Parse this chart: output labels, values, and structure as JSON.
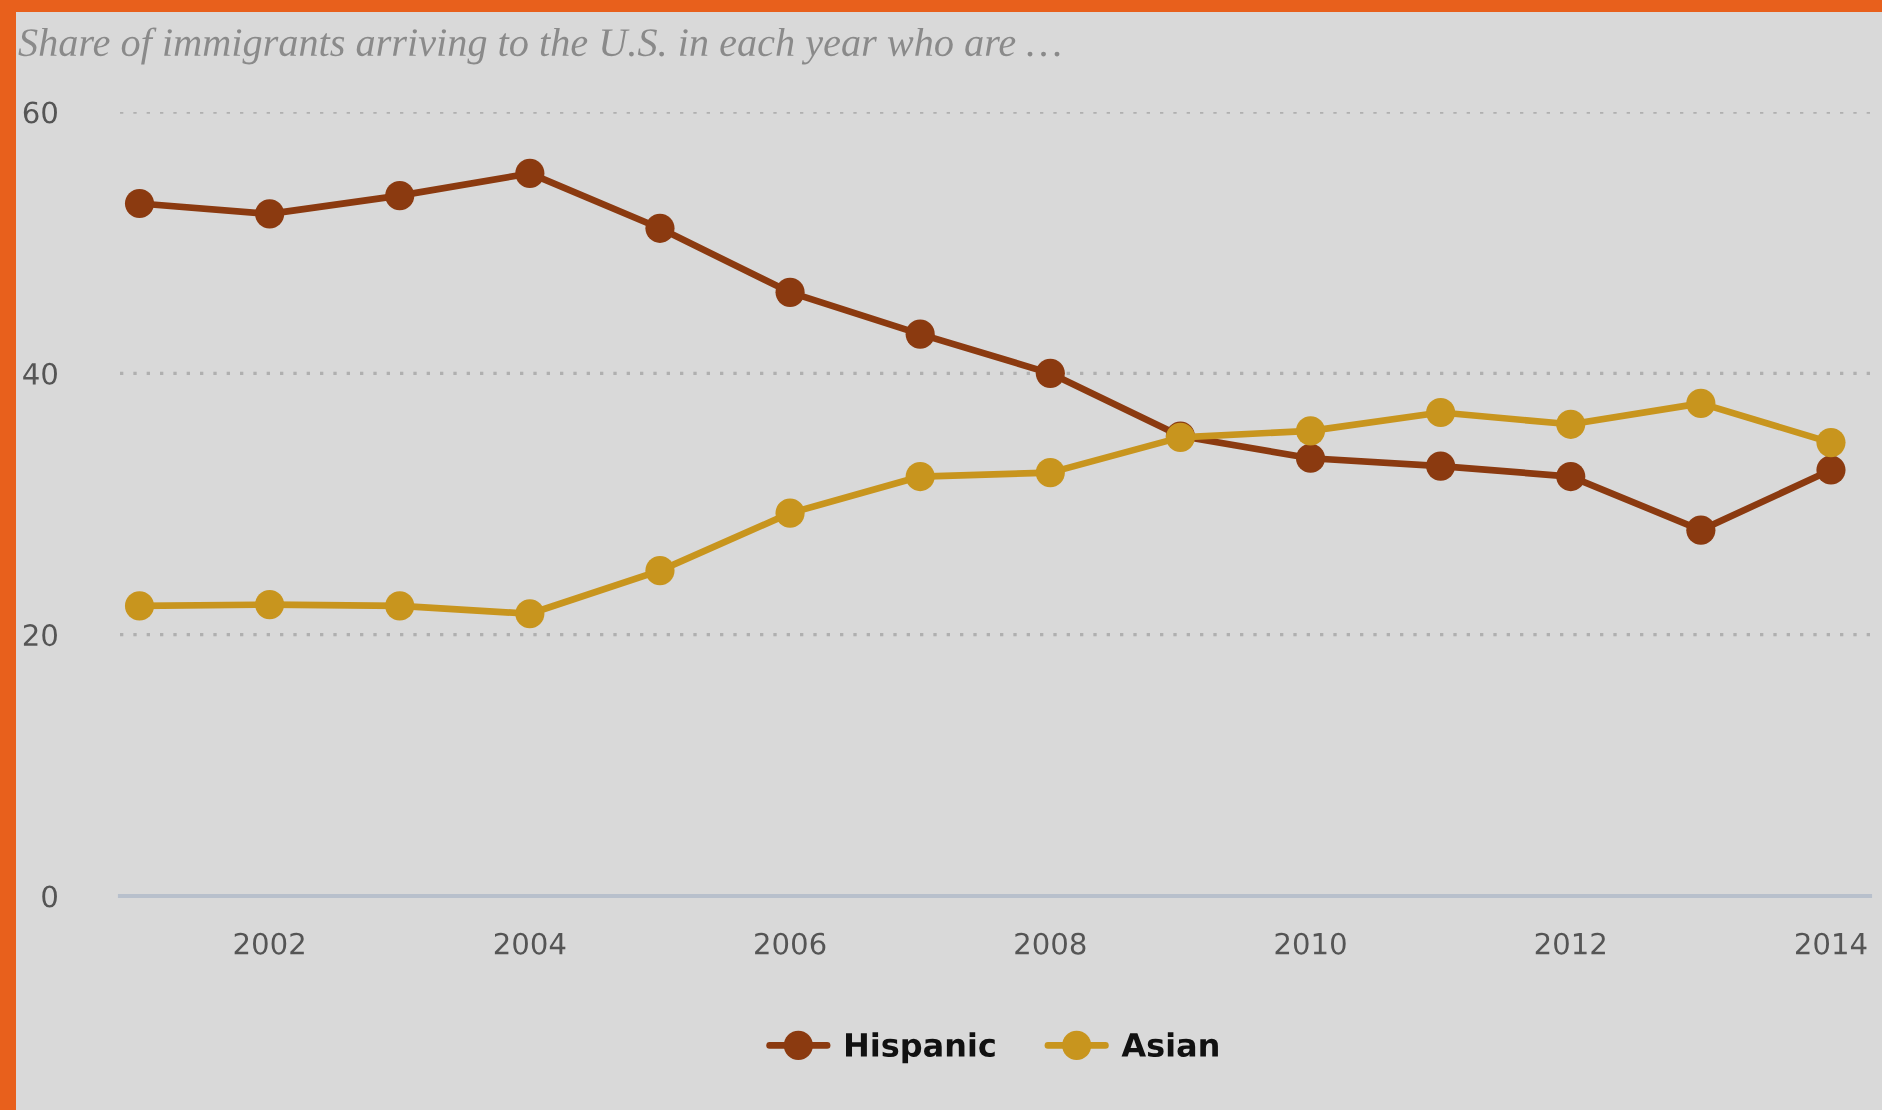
{
  "chart_data": {
    "type": "line",
    "title": "Share of immigrants arriving to the U.S. in each year who are …",
    "x": [
      2001,
      2002,
      2003,
      2004,
      2005,
      2006,
      2007,
      2008,
      2009,
      2010,
      2011,
      2012,
      2013,
      2014
    ],
    "series": [
      {
        "name": "Hispanic",
        "color": "#8b3a10",
        "values": [
          53.0,
          52.2,
          53.6,
          55.3,
          51.1,
          46.2,
          43.0,
          40.0,
          35.2,
          33.5,
          32.9,
          32.1,
          28.0,
          32.6
        ]
      },
      {
        "name": "Asian",
        "color": "#c8951e",
        "values": [
          22.2,
          22.3,
          22.2,
          21.6,
          24.9,
          29.3,
          32.1,
          32.4,
          35.1,
          35.6,
          37.0,
          36.1,
          37.7,
          34.7
        ]
      }
    ],
    "xlim": [
      2000.85,
      2014.3
    ],
    "xticks": [
      2002,
      2004,
      2006,
      2008,
      2010,
      2012,
      2014
    ],
    "ylim": [
      0,
      60
    ],
    "yticks": [
      0,
      20,
      40,
      60
    ],
    "grid": "y",
    "legend": "bottom",
    "marker": "circle",
    "line_style": "solid"
  }
}
